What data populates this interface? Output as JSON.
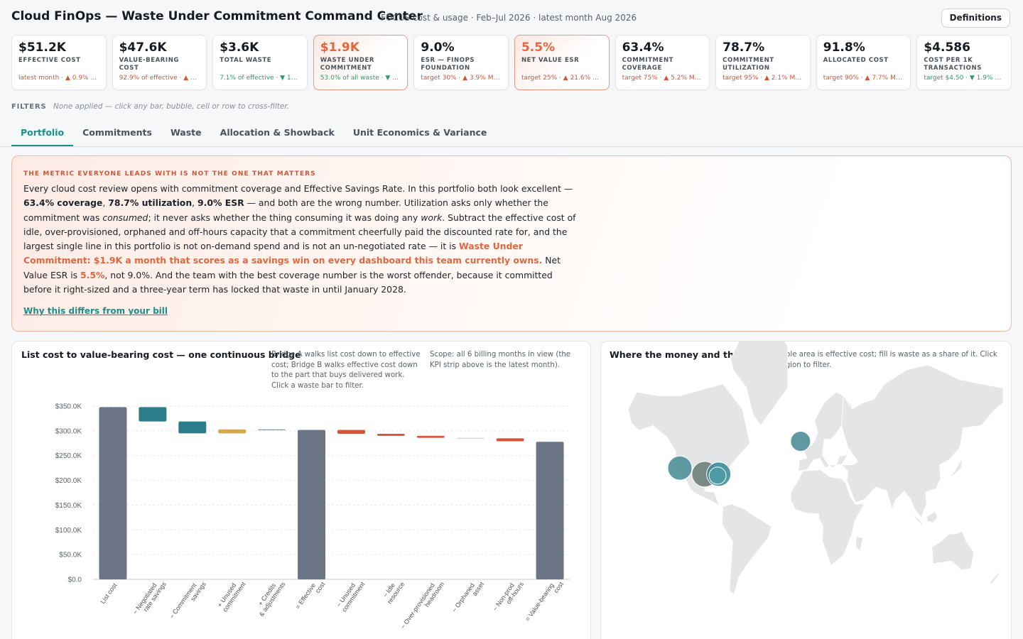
{
  "header": {
    "title": "Cloud FinOps — Waste Under Commitment Command Center",
    "subtitle": "FOCUS cost & usage · Feb–Jul 2026 · latest month Aug 2026",
    "definitions_label": "Definitions"
  },
  "kpis": [
    {
      "value": "$51.2K",
      "label": "Effective cost",
      "note": "latest month · ▲ 0.9% ...",
      "note_tone": "bad",
      "alert": false
    },
    {
      "value": "$47.6K",
      "label": "Value-bearing cost",
      "note": "92.9% of effective · ▲ 2...",
      "note_tone": "bad",
      "alert": false
    },
    {
      "value": "$3.6K",
      "label": "Total waste",
      "note": "7.1% of effective · ▼ 19....",
      "note_tone": "good",
      "alert": false
    },
    {
      "value": "$1.9K",
      "label": "Waste under commitment",
      "note": "53.0% of all waste · ▼ 1...",
      "note_tone": "good",
      "alert": true
    },
    {
      "value": "9.0%",
      "label": "ESR — FinOps Foundation",
      "note": "target 30% · ▲ 3.9% Mo...",
      "note_tone": "bad",
      "alert": false
    },
    {
      "value": "5.5%",
      "label": "Net value ESR",
      "note": "target 25% · ▲ 21.6% M...",
      "note_tone": "bad",
      "alert": true
    },
    {
      "value": "63.4%",
      "label": "Commitment coverage",
      "note": "target 75% · ▲ 5.2% Mo...",
      "note_tone": "bad",
      "alert": false
    },
    {
      "value": "78.7%",
      "label": "Commitment utilization",
      "note": "target 95% · ▲ 2.1% Mo...",
      "note_tone": "bad",
      "alert": false
    },
    {
      "value": "91.8%",
      "label": "Allocated cost",
      "note": "target 90% · ▲ 7.7% Mo...",
      "note_tone": "bad",
      "alert": false
    },
    {
      "value": "$4.586",
      "label": "Cost per 1K transactions",
      "note": "target $4.50 · ▼ 1.9% M...",
      "note_tone": "good",
      "alert": false
    }
  ],
  "filters": {
    "label": "FILTERS",
    "text": "None applied — click any bar, bubble, cell or row to cross-filter."
  },
  "tabs": [
    {
      "label": "Portfolio",
      "active": true
    },
    {
      "label": "Commitments",
      "active": false
    },
    {
      "label": "Waste",
      "active": false
    },
    {
      "label": "Allocation & Showback",
      "active": false
    },
    {
      "label": "Unit Economics & Variance",
      "active": false
    }
  ],
  "callout": {
    "kicker": "The metric everyone leads with is not the one that matters",
    "p1": "Every cloud cost review opens with commitment coverage and Effective Savings Rate. In this portfolio both look excellent — ",
    "b1": "63.4% coverage",
    "p2": ", ",
    "b2": "78.7% utilization",
    "p3": ", ",
    "b3": "9.0% ESR",
    "p4": " — and both are the wrong number. Utilization asks only whether the commitment was ",
    "i1": "consumed",
    "p5": "; it never asks whether the thing consuming it was doing any ",
    "i2": "work",
    "p6": ". Subtract the effective cost of idle, over-provisioned, orphaned and off-hours capacity that a commitment cheerfully paid the discounted rate for, and the largest single line in this portfolio is not on-demand spend and is not an un-negotiated rate — it is ",
    "h1": "Waste Under Commitment: $1.9K a month that scores as a savings win on every dashboard this team currently owns.",
    "p7": " Net Value ESR is ",
    "h2": "5.5%",
    "p8": ", not 9.0%. And the team with the best coverage number is the worst offender, because it committed before it right-sized and a three-year term has locked that waste in until January 2028.",
    "link": "Why this differs from your bill"
  },
  "bridge_card": {
    "title": "List cost to value-bearing cost — one continuous bridge",
    "note1": "Bridge A walks list cost down to effective cost; Bridge B walks effective cost down to the part that buys delivered work. Click a waste bar to filter.",
    "note2": "Scope: all 6 billing months in view (the KPI strip above is the latest month)."
  },
  "map_card": {
    "title": "Where the money and the waste sit",
    "note": "Bubble area is effective cost; fill is waste as a share of it. Click a region to filter."
  },
  "chart_data": {
    "type": "bar",
    "subtype": "waterfall",
    "ylim": [
      0,
      350000
    ],
    "yticks": [
      "$0.0",
      "$50.0K",
      "$100.0K",
      "$150.0K",
      "$200.0K",
      "$250.0K",
      "$300.0K",
      "$350.0K"
    ],
    "grid": true,
    "categories": [
      "List cost",
      "− Negotiated rate savings",
      "− Commitment savings",
      "+ Unused commitment",
      "+ Credits & adjustments",
      "= Effective cost",
      "− Unused commitment",
      "− Idle resource",
      "− Over-provisioned headroom",
      "− Orphaned asset",
      "− Non-prod off-hours",
      "= Value-bearing cost"
    ],
    "bars": [
      {
        "kind": "total",
        "start": 0,
        "end": 348000
      },
      {
        "kind": "step",
        "start": 348000,
        "end": 319000
      },
      {
        "kind": "step",
        "start": 319000,
        "end": 295000
      },
      {
        "kind": "step",
        "start": 295000,
        "end": 303000
      },
      {
        "kind": "step",
        "start": 303000,
        "end": 302000
      },
      {
        "kind": "total",
        "start": 0,
        "end": 302000
      },
      {
        "kind": "step",
        "start": 302000,
        "end": 294000
      },
      {
        "kind": "step",
        "start": 294000,
        "end": 290000
      },
      {
        "kind": "step",
        "start": 290000,
        "end": 286000
      },
      {
        "kind": "step",
        "start": 286000,
        "end": 285000
      },
      {
        "kind": "step",
        "start": 285000,
        "end": 279000
      },
      {
        "kind": "total",
        "start": 0,
        "end": 278000
      }
    ],
    "colors": {
      "total": "#6b7585",
      "savings": "#2e7d8a",
      "commitment_savings": "#2e7d8a",
      "unused": "#d9a746",
      "credits": "#5fa4a8",
      "waste": "#d2553a",
      "neutral": "#cfd4da"
    },
    "bar_colors": [
      "total",
      "savings",
      "commitment_savings",
      "unused",
      "credits",
      "total",
      "waste",
      "waste",
      "waste",
      "neutral",
      "waste",
      "total"
    ]
  },
  "map_bubbles": [
    {
      "region": "US West",
      "lon": -120,
      "lat": 38,
      "r": 17,
      "color": "#4e8f98"
    },
    {
      "region": "US Central",
      "lon": -97,
      "lat": 34,
      "r": 18,
      "color": "#6f7e7b"
    },
    {
      "region": "US East",
      "lon": -84,
      "lat": 34,
      "r": 17,
      "color": "#3d8f98"
    },
    {
      "region": "US East 2",
      "lon": -85,
      "lat": 33,
      "r": 12,
      "color": "#4e9ca5"
    },
    {
      "region": "EU West",
      "lon": -8,
      "lat": 53,
      "r": 14,
      "color": "#4e8f98"
    }
  ]
}
